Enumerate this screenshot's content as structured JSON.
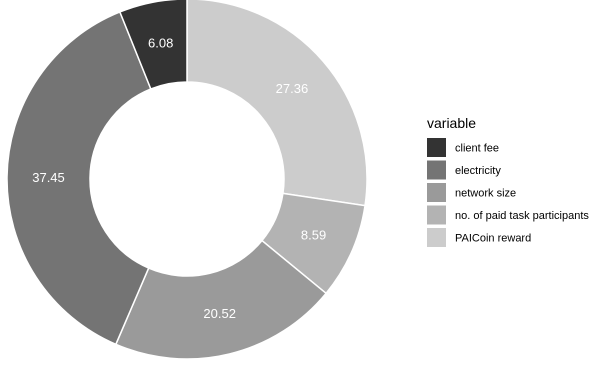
{
  "chart_data": {
    "type": "pie",
    "donut": true,
    "title": "",
    "legend": {
      "title": "variable",
      "placement": "right"
    },
    "slices": [
      {
        "label": "PAICoin reward",
        "value": 27.36,
        "value_label": "27.36",
        "color": "#cccccc"
      },
      {
        "label": "no. of paid task participants",
        "value": 8.59,
        "value_label": "8.59",
        "color": "#b3b3b3"
      },
      {
        "label": "network size",
        "value": 20.52,
        "value_label": "20.52",
        "color": "#9a9a9a"
      },
      {
        "label": "electricity",
        "value": 37.45,
        "value_label": "37.45",
        "color": "#747474"
      },
      {
        "label": "client fee",
        "value": 6.08,
        "value_label": "6.08",
        "color": "#333333"
      }
    ],
    "legend_order": [
      "client fee",
      "electricity",
      "network size",
      "no. of paid task participants",
      "PAICoin reward"
    ]
  }
}
